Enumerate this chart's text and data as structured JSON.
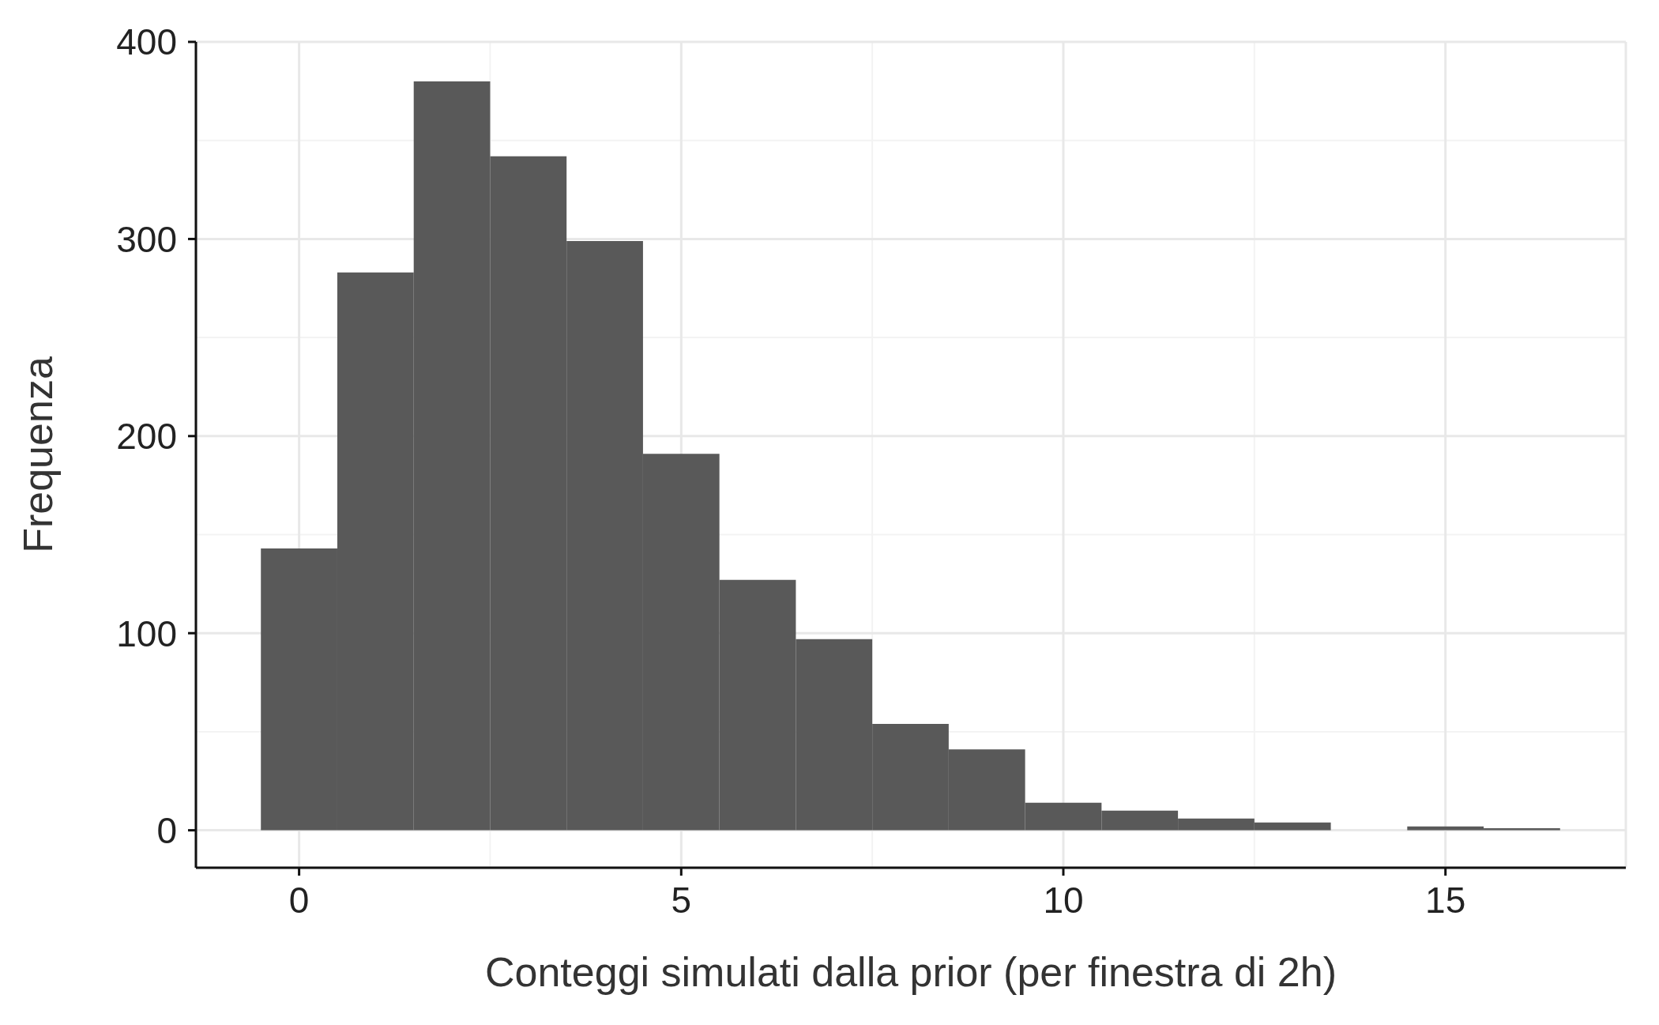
{
  "chart_data": {
    "type": "histogram",
    "xlabel": "Conteggi simulati dalla prior (per finestra di 2h)",
    "ylabel": "Frequenza",
    "bins": [
      -0.5,
      0.5,
      1.5,
      2.5,
      3.5,
      4.5,
      5.5,
      6.5,
      7.5,
      8.5,
      9.5,
      10.5,
      11.5,
      12.5,
      13.5,
      14.5,
      15.5,
      16.5
    ],
    "values": [
      143,
      283,
      380,
      342,
      299,
      191,
      127,
      97,
      54,
      41,
      14,
      10,
      6,
      4,
      0,
      2,
      1
    ],
    "color": "#595959",
    "xlim": [
      -1.35,
      17.36
    ],
    "xticks": [
      0,
      5,
      10,
      15
    ],
    "ylim": [
      -19,
      400
    ],
    "yticks": [
      0,
      100,
      200,
      300,
      400
    ],
    "grid": true
  }
}
